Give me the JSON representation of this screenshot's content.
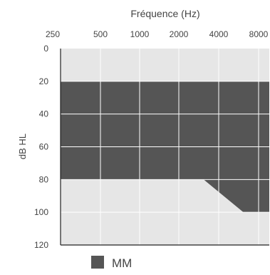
{
  "chart_data": {
    "type": "area",
    "title": "",
    "xlabel": "Fréquence (Hz)",
    "ylabel": "dB HL",
    "x_ticks": [
      "250",
      "500",
      "1000",
      "2000",
      "4000",
      "8000"
    ],
    "y_ticks": [
      "0",
      "20",
      "40",
      "60",
      "80",
      "100",
      "120"
    ],
    "ylim": [
      0,
      120
    ],
    "y_inverted": true,
    "x_scale": "log2",
    "grid": true,
    "legend_position": "bottom-left",
    "colors": {
      "plot_background": "#e6e6e6",
      "band_fill": "#555555",
      "grid": "#ffffff",
      "frame": "#222222"
    },
    "series": [
      {
        "name": "MM",
        "upper_db": [
          {
            "hz": 250,
            "db": 20
          },
          {
            "hz": 500,
            "db": 20
          },
          {
            "hz": 1000,
            "db": 20
          },
          {
            "hz": 2000,
            "db": 20
          },
          {
            "hz": 4000,
            "db": 20
          },
          {
            "hz": 8000,
            "db": 20
          }
        ],
        "lower_db": [
          {
            "hz": 250,
            "db": 80
          },
          {
            "hz": 2000,
            "db": 80
          },
          {
            "hz": 3000,
            "db": 80
          },
          {
            "hz": 6000,
            "db": 100
          },
          {
            "hz": 8000,
            "db": 100
          }
        ]
      }
    ]
  }
}
